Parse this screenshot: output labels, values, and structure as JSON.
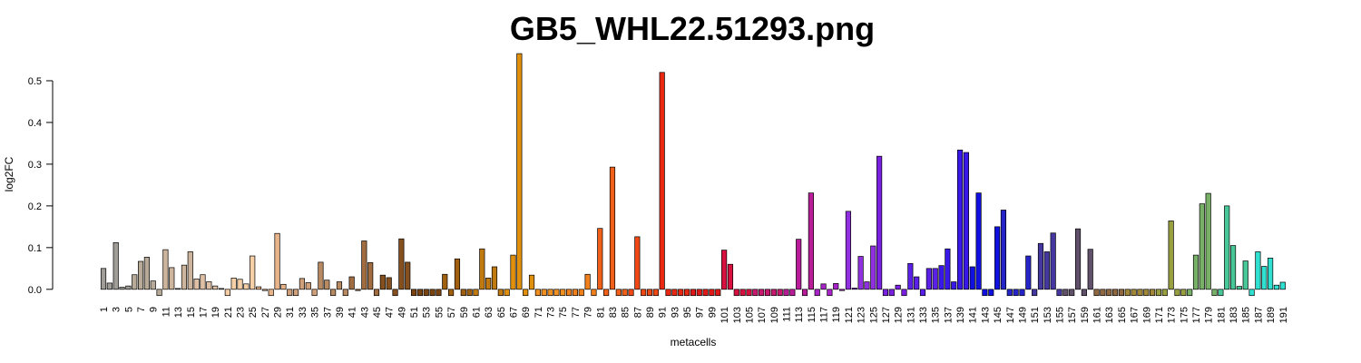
{
  "chart_data": {
    "type": "bar",
    "title": "GB5_WHL22.51293.png",
    "xlabel": "metacells",
    "ylabel": "log2FC",
    "categories": [
      "1",
      null,
      "3",
      null,
      "5",
      null,
      "7",
      null,
      "9",
      null,
      "11",
      null,
      "13",
      null,
      "15",
      null,
      "17",
      null,
      "19",
      null,
      "21",
      null,
      "23",
      null,
      "25",
      null,
      "27",
      null,
      "29",
      null,
      "31",
      null,
      "33",
      null,
      "35",
      null,
      "37",
      null,
      "39",
      null,
      "41",
      null,
      "43",
      null,
      "45",
      null,
      "47",
      null,
      "49",
      null,
      "51",
      null,
      "53",
      null,
      "55",
      null,
      "57",
      null,
      "59",
      null,
      "61",
      null,
      "63",
      null,
      "65",
      null,
      "67",
      null,
      "69",
      null,
      "71",
      null,
      "73",
      null,
      "75",
      null,
      "77",
      null,
      "79",
      null,
      "81",
      null,
      "83",
      null,
      "85",
      null,
      "87",
      null,
      "89",
      null,
      "91",
      null,
      "93",
      null,
      "95",
      null,
      "97",
      null,
      "99",
      null,
      "101",
      null,
      "103",
      null,
      "105",
      null,
      "107",
      null,
      "109",
      null,
      "111",
      null,
      "113",
      null,
      "115",
      null,
      "117",
      null,
      "119",
      null,
      "121",
      null,
      "123",
      null,
      "125",
      null,
      "127",
      null,
      "129",
      null,
      "131",
      null,
      "133",
      null,
      "135",
      null,
      "137",
      null,
      "139",
      null,
      "141",
      null,
      "143",
      null,
      "145",
      null,
      "147",
      null,
      "149",
      null,
      "151",
      null,
      "153",
      null,
      "155",
      null,
      "157",
      null,
      "159",
      null,
      "161",
      null,
      "163",
      null,
      "165",
      null,
      "167",
      null,
      "169",
      null,
      "171",
      null,
      "173",
      null,
      "175",
      null,
      "177",
      null,
      "179",
      null,
      "181",
      null,
      "183",
      null,
      "185",
      null,
      "187",
      null,
      "189",
      null,
      "191"
    ],
    "values": [
      0.05,
      0.015,
      0.112,
      0.005,
      0.008,
      0.035,
      0.067,
      0.077,
      0.02,
      -0.015,
      0.095,
      0.052,
      0.002,
      0.058,
      0.09,
      0.025,
      0.035,
      0.018,
      0.008,
      0.002,
      -0.015,
      0.027,
      0.024,
      0.013,
      0.08,
      0.006,
      -0.003,
      -0.015,
      0.134,
      0.012,
      -0.015,
      -0.015,
      0.026,
      0.016,
      -0.015,
      0.065,
      0.022,
      -0.015,
      0.018,
      -0.015,
      0.03,
      -0.003,
      0.116,
      0.064,
      -0.015,
      0.034,
      0.028,
      -0.015,
      0.121,
      0.065,
      -0.015,
      -0.015,
      -0.015,
      -0.015,
      -0.015,
      0.036,
      -0.015,
      0.073,
      -0.015,
      -0.015,
      -0.015,
      0.097,
      0.027,
      0.054,
      -0.015,
      -0.015,
      0.082,
      0.565,
      -0.015,
      0.034,
      -0.015,
      -0.015,
      -0.015,
      -0.015,
      -0.015,
      -0.015,
      -0.015,
      -0.015,
      0.036,
      -0.015,
      0.146,
      -0.015,
      0.293,
      -0.015,
      -0.015,
      -0.015,
      0.126,
      -0.015,
      -0.015,
      -0.015,
      0.52,
      -0.015,
      -0.015,
      -0.015,
      -0.015,
      -0.015,
      -0.015,
      -0.015,
      -0.015,
      -0.015,
      0.094,
      0.06,
      -0.015,
      -0.015,
      -0.015,
      -0.015,
      -0.015,
      -0.015,
      -0.015,
      -0.015,
      -0.015,
      -0.015,
      0.12,
      -0.015,
      0.231,
      -0.015,
      0.013,
      -0.015,
      0.014,
      -0.003,
      0.187,
      0.003,
      0.079,
      0.018,
      0.104,
      0.319,
      -0.015,
      -0.015,
      0.01,
      -0.015,
      0.062,
      0.03,
      -0.015,
      0.05,
      0.05,
      0.057,
      0.097,
      0.018,
      0.334,
      0.328,
      0.054,
      0.231,
      -0.015,
      -0.015,
      0.15,
      0.19,
      -0.015,
      -0.015,
      -0.015,
      0.08,
      -0.015,
      0.11,
      0.09,
      0.135,
      -0.015,
      -0.015,
      -0.015,
      0.145,
      -0.015,
      0.096,
      -0.015,
      -0.015,
      -0.015,
      -0.015,
      -0.015,
      -0.015,
      -0.015,
      -0.015,
      -0.015,
      -0.015,
      -0.015,
      -0.015,
      0.164,
      -0.015,
      -0.015,
      -0.015,
      0.082,
      0.205,
      0.23,
      -0.015,
      -0.015,
      0.2,
      0.105,
      0.007,
      0.068,
      -0.015,
      0.09,
      0.055,
      0.075,
      0.01,
      0.017
    ],
    "colors": [
      "#a09c98",
      "#a09c98",
      "#a09c98",
      "#a09c98",
      "#a09c98",
      "#b8aa98",
      "#b8aa98",
      "#b8aa98",
      "#b8aa98",
      "#b8aa98",
      "#cdb49c",
      "#cdb49c",
      "#cdb49c",
      "#cdb49c",
      "#cdb49c",
      "#dfc0a4",
      "#dfc0a4",
      "#dfc0a4",
      "#dfc0a4",
      "#dfc0a4",
      "#f6cfa6",
      "#f6cfa6",
      "#f6cfa6",
      "#f6cfa6",
      "#f6cfa6",
      "#e8b48a",
      "#e8b48a",
      "#e8b48a",
      "#e8b48a",
      "#e8b48a",
      "#d0a07a",
      "#d0a07a",
      "#d0a07a",
      "#d0a07a",
      "#d0a07a",
      "#b88a62",
      "#b88a62",
      "#b88a62",
      "#b88a62",
      "#b88a62",
      "#a06c40",
      "#a06c40",
      "#a06c40",
      "#a06c40",
      "#a06c40",
      "#86501e",
      "#86501e",
      "#86501e",
      "#86501e",
      "#86501e",
      "#7a4410",
      "#7a4410",
      "#7a4410",
      "#7a4410",
      "#7a4410",
      "#a06010",
      "#a06010",
      "#a06010",
      "#a06010",
      "#a06010",
      "#c07a10",
      "#c07a10",
      "#c07a10",
      "#c07a10",
      "#c07a10",
      "#e0900c",
      "#e0900c",
      "#e0900c",
      "#e0900c",
      "#e0900c",
      "#f09020",
      "#f09020",
      "#f09020",
      "#f09020",
      "#f09020",
      "#f0801c",
      "#f0801c",
      "#f0801c",
      "#f0801c",
      "#f0801c",
      "#f06018",
      "#f06018",
      "#f06018",
      "#f06018",
      "#f06018",
      "#f04814",
      "#f04814",
      "#f04814",
      "#f04814",
      "#f04814",
      "#e82810",
      "#e82810",
      "#e82810",
      "#e82810",
      "#e82810",
      "#e01818",
      "#e01818",
      "#e01818",
      "#e01818",
      "#e01818",
      "#d81040",
      "#d81040",
      "#d81040",
      "#d81040",
      "#d81040",
      "#c81870",
      "#c81870",
      "#c81870",
      "#c81870",
      "#c81870",
      "#b81c98",
      "#b81c98",
      "#b81c98",
      "#b81c98",
      "#b81c98",
      "#a824c8",
      "#a824c8",
      "#a824c8",
      "#a824c8",
      "#a824c8",
      "#9030e0",
      "#9030e0",
      "#9030e0",
      "#9030e0",
      "#9030e0",
      "#7a20e0",
      "#7a20e0",
      "#7a20e0",
      "#7a20e0",
      "#7a20e0",
      "#5a20e8",
      "#5a20e8",
      "#5a20e8",
      "#5a20e8",
      "#5a20e8",
      "#3818e8",
      "#3818e8",
      "#3818e8",
      "#3818e8",
      "#3818e8",
      "#1010e0",
      "#1010e0",
      "#1010e0",
      "#1010e0",
      "#1010e0",
      "#2424c8",
      "#2424c8",
      "#2424c8",
      "#2424c8",
      "#2424c8",
      "#4438a0",
      "#4438a0",
      "#4438a0",
      "#4438a0",
      "#4438a0",
      "#60506a",
      "#60506a",
      "#60506a",
      "#60506a",
      "#60506a",
      "#906840",
      "#906840",
      "#906840",
      "#906840",
      "#906840",
      "#a08838",
      "#a08838",
      "#a08838",
      "#a08838",
      "#a08838",
      "#98a040",
      "#98a040",
      "#98a040",
      "#98a040",
      "#98a040",
      "#78b068",
      "#78b068",
      "#78b068",
      "#78b068",
      "#78b068",
      "#48c898",
      "#48c898",
      "#48c898",
      "#48c898",
      "#48c898",
      "#30e0d0",
      "#30e0d0",
      "#30e0d0",
      "#30e0d0",
      "#30e0d0",
      "#30e0d0"
    ],
    "ylim": [
      -0.02,
      0.575
    ],
    "yticks": [
      {
        "value": 0,
        "label": "0.0"
      },
      0.1,
      0.2,
      0.3,
      0.4,
      0.5
    ]
  }
}
